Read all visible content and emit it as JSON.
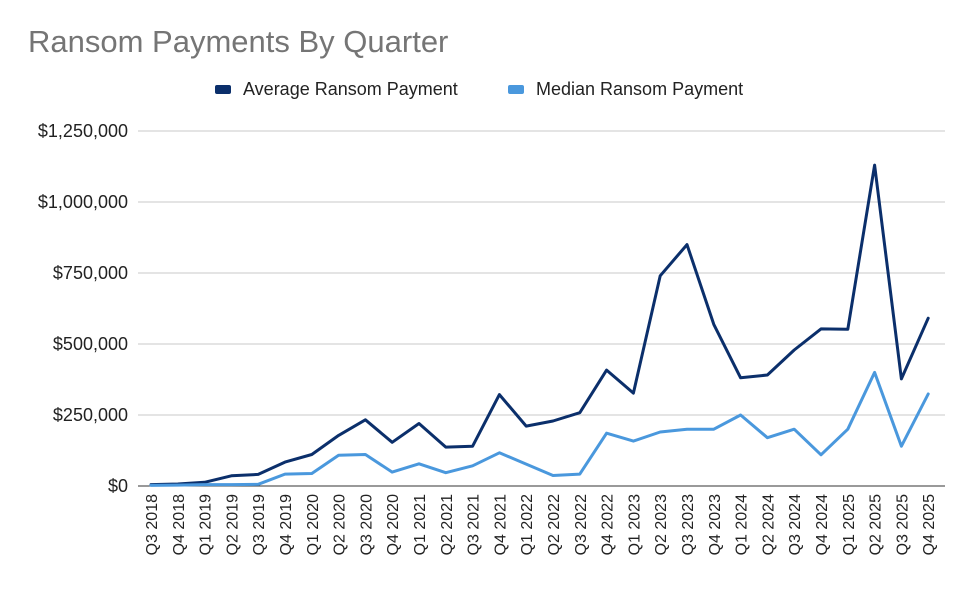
{
  "chart_data": {
    "type": "line",
    "title": "Ransom Payments By Quarter",
    "xlabel": "",
    "ylabel": "",
    "ylim": [
      0,
      1250000
    ],
    "yticks": [
      0,
      250000,
      500000,
      750000,
      1000000,
      1250000
    ],
    "ytick_labels": [
      "$0",
      "$250,000",
      "$500,000",
      "$750,000",
      "$1,000,000",
      "$1,250,000"
    ],
    "grid": true,
    "legend_position": "top-center",
    "categories": [
      "Q3 2018",
      "Q4 2018",
      "Q1 2019",
      "Q2 2019",
      "Q3 2019",
      "Q4 2019",
      "Q1 2020",
      "Q2 2020",
      "Q3 2020",
      "Q4 2020",
      "Q1 2021",
      "Q2 2021",
      "Q3 2021",
      "Q4 2021",
      "Q1 2022",
      "Q2 2022",
      "Q3 2022",
      "Q4 2022",
      "Q1 2023",
      "Q2 2023",
      "Q3 2023",
      "Q4 2023",
      "Q1 2024",
      "Q2 2024",
      "Q3 2024",
      "Q4 2024",
      "Q1 2025",
      "Q2 2025",
      "Q3 2025",
      "Q4 2025"
    ],
    "series": [
      {
        "name": "Average Ransom Payment",
        "color": "#0b2f6b",
        "values": [
          5000,
          7000,
          13000,
          36000,
          41000,
          84000,
          111000,
          178000,
          233000,
          154000,
          220000,
          137000,
          140000,
          322000,
          211000,
          229000,
          258000,
          408000,
          327000,
          740000,
          850000,
          569000,
          381000,
          391000,
          479000,
          553000,
          552000,
          1130000,
          377000,
          591000
        ]
      },
      {
        "name": "Median Ransom Payment",
        "color": "#4a98dd",
        "values": [
          2000,
          3000,
          5000,
          5000,
          6000,
          42000,
          44000,
          108000,
          111000,
          49000,
          78000,
          47000,
          71000,
          117000,
          77000,
          37000,
          42000,
          186000,
          158000,
          190000,
          200000,
          200000,
          250000,
          170000,
          200000,
          110000,
          200000,
          400000,
          140000,
          324000
        ]
      }
    ]
  }
}
